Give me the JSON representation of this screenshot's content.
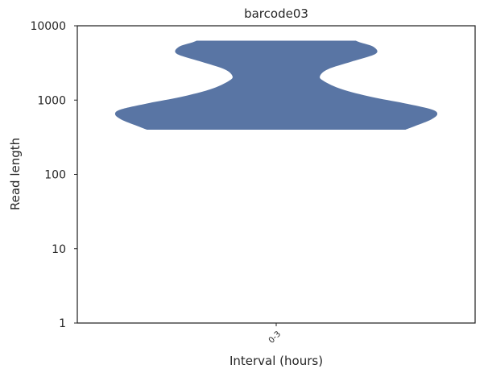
{
  "chart_data": {
    "type": "violin",
    "title": "barcode03",
    "xlabel": "Interval (hours)",
    "ylabel": "Read length",
    "yscale": "log",
    "ylim": [
      1,
      10000
    ],
    "yticks": [
      1,
      10,
      100,
      1000,
      10000
    ],
    "ytick_labels": [
      "1",
      "10",
      "100",
      "1000",
      "10000"
    ],
    "categories": [
      "0-3"
    ],
    "grid": false,
    "fill_color": "#5975a4",
    "series": [
      {
        "category": "0-3",
        "min": 400,
        "max": 6300,
        "density_profile": [
          {
            "y": 400,
            "width": 0.65
          },
          {
            "y": 450,
            "width": 0.7
          },
          {
            "y": 550,
            "width": 0.78
          },
          {
            "y": 650,
            "width": 0.81
          },
          {
            "y": 750,
            "width": 0.78
          },
          {
            "y": 900,
            "width": 0.65
          },
          {
            "y": 1100,
            "width": 0.48
          },
          {
            "y": 1400,
            "width": 0.33
          },
          {
            "y": 1800,
            "width": 0.24
          },
          {
            "y": 2100,
            "width": 0.22
          },
          {
            "y": 2600,
            "width": 0.26
          },
          {
            "y": 3300,
            "width": 0.38
          },
          {
            "y": 4200,
            "width": 0.5
          },
          {
            "y": 5200,
            "width": 0.49
          },
          {
            "y": 6000,
            "width": 0.42
          },
          {
            "y": 6300,
            "width": 0.4
          }
        ]
      }
    ]
  }
}
